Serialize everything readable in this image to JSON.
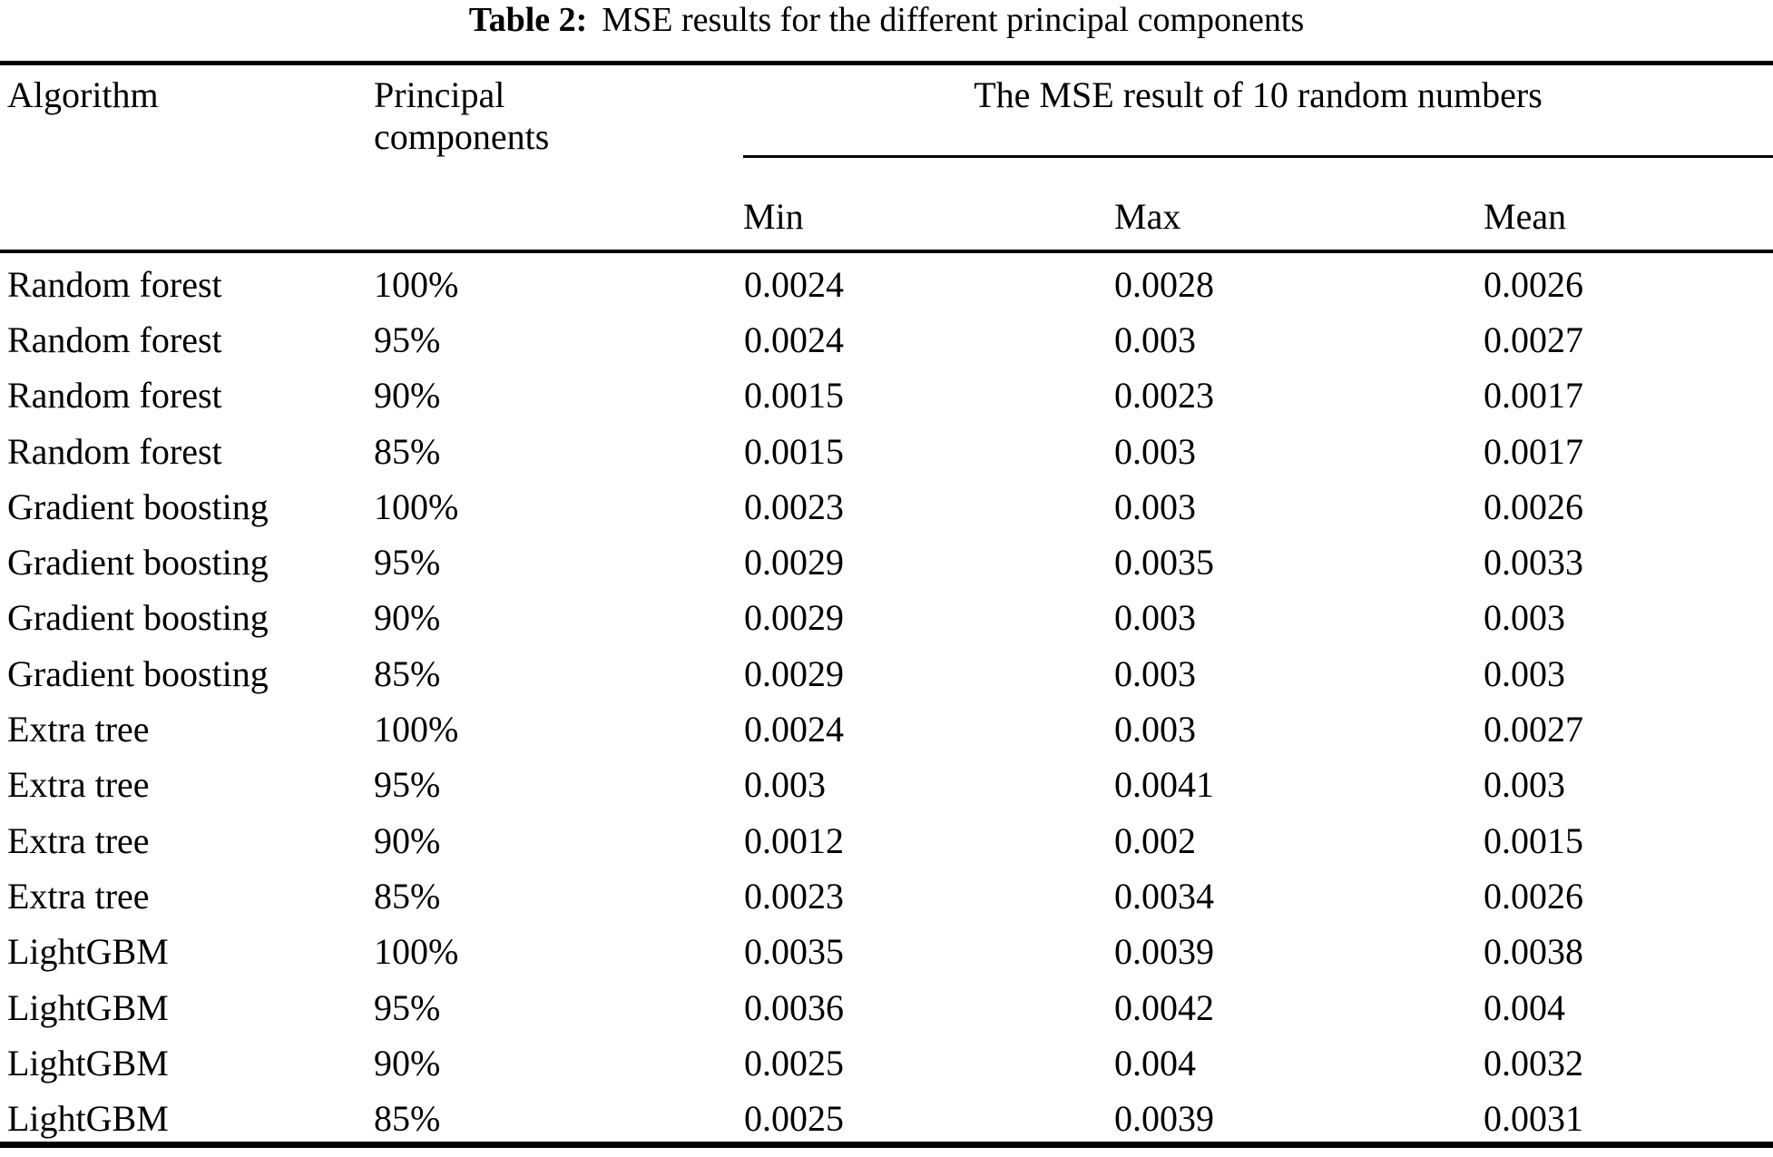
{
  "title": {
    "label": "Table 2:",
    "text": "MSE results for the different principal components"
  },
  "table": {
    "headers": {
      "algorithm": "Algorithm",
      "principal_components": "Principal components",
      "span_header": "The MSE result of 10 random numbers",
      "min": "Min",
      "max": "Max",
      "mean": "Mean"
    },
    "rows": [
      {
        "algorithm": "Random forest",
        "pc": "100%",
        "min": "0.0024",
        "max": "0.0028",
        "mean": "0.0026"
      },
      {
        "algorithm": "Random forest",
        "pc": "95%",
        "min": "0.0024",
        "max": "0.003",
        "mean": "0.0027"
      },
      {
        "algorithm": "Random forest",
        "pc": "90%",
        "min": "0.0015",
        "max": "0.0023",
        "mean": "0.0017"
      },
      {
        "algorithm": "Random forest",
        "pc": "85%",
        "min": "0.0015",
        "max": "0.003",
        "mean": "0.0017"
      },
      {
        "algorithm": "Gradient boosting",
        "pc": "100%",
        "min": "0.0023",
        "max": "0.003",
        "mean": "0.0026"
      },
      {
        "algorithm": "Gradient boosting",
        "pc": "95%",
        "min": "0.0029",
        "max": "0.0035",
        "mean": "0.0033"
      },
      {
        "algorithm": "Gradient boosting",
        "pc": "90%",
        "min": "0.0029",
        "max": "0.003",
        "mean": "0.003"
      },
      {
        "algorithm": "Gradient boosting",
        "pc": "85%",
        "min": "0.0029",
        "max": "0.003",
        "mean": "0.003"
      },
      {
        "algorithm": "Extra tree",
        "pc": "100%",
        "min": "0.0024",
        "max": "0.003",
        "mean": "0.0027"
      },
      {
        "algorithm": "Extra tree",
        "pc": "95%",
        "min": "0.003",
        "max": "0.0041",
        "mean": "0.003"
      },
      {
        "algorithm": "Extra tree",
        "pc": "90%",
        "min": "0.0012",
        "max": "0.002",
        "mean": "0.0015"
      },
      {
        "algorithm": "Extra tree",
        "pc": "85%",
        "min": "0.0023",
        "max": "0.0034",
        "mean": "0.0026"
      },
      {
        "algorithm": "LightGBM",
        "pc": "100%",
        "min": "0.0035",
        "max": "0.0039",
        "mean": "0.0038"
      },
      {
        "algorithm": "LightGBM",
        "pc": "95%",
        "min": "0.0036",
        "max": "0.0042",
        "mean": "0.004"
      },
      {
        "algorithm": "LightGBM",
        "pc": "90%",
        "min": "0.0025",
        "max": "0.004",
        "mean": "0.0032"
      },
      {
        "algorithm": "LightGBM",
        "pc": "85%",
        "min": "0.0025",
        "max": "0.0039",
        "mean": "0.0031"
      }
    ],
    "colors": {
      "text": "#000000",
      "background": "#ffffff",
      "rule": "#000000"
    }
  }
}
